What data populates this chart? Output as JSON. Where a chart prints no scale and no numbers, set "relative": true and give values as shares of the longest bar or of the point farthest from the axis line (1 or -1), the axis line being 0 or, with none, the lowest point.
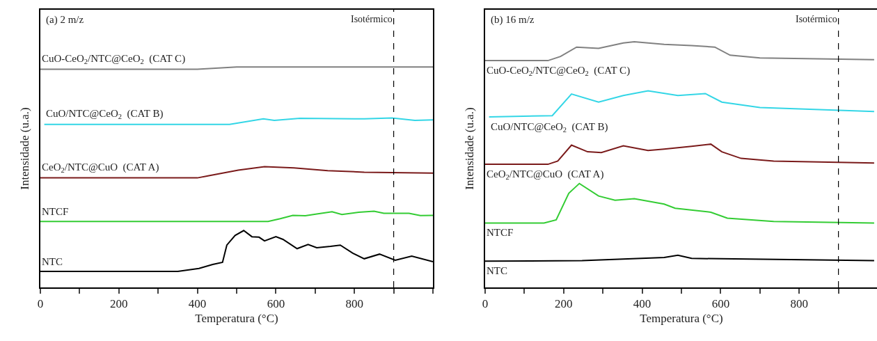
{
  "chart_data": [
    {
      "type": "line",
      "relative": true,
      "xlabel": "Temperatura (°C)",
      "ylabel": "Intensidade (u.a.)",
      "annotations": [
        "(a) 2 m/z"
      ],
      "xlim": [
        0,
        1000
      ],
      "xticks": [
        0,
        {
          "value": 100,
          "label": null
        },
        200,
        {
          "value": 300,
          "label": null
        },
        400,
        {
          "value": 500,
          "label": null
        },
        600,
        {
          "value": 700,
          "label": null
        },
        800,
        {
          "value": 900,
          "label": null
        },
        {
          "value": 1000,
          "label": null
        }
      ],
      "tick_labels": "x",
      "grid": false,
      "legend": false,
      "marker": "none",
      "line_style": "solid",
      "ref_lines": [
        {
          "axis": "x",
          "value": 900,
          "label": "Isotérmico",
          "color": "#000000",
          "line_style": "dashed"
        }
      ],
      "series": [
        {
          "name": "CuO-CeO$_{2}$/NTC@CeO$_{2}$  (CAT C)",
          "color": "#808080",
          "x": [
            0,
            400,
            500,
            1000
          ],
          "values": [
            0.99,
            0.99,
            1.0,
            1.0
          ]
        },
        {
          "name": "CuO/NTC@CeO$_{2}$  (CAT B)",
          "color": "#33d6e6",
          "x": [
            10,
            482,
            568,
            596,
            661,
            825,
            896,
            954,
            1000
          ],
          "values": [
            0.74,
            0.74,
            0.765,
            0.758,
            0.767,
            0.765,
            0.769,
            0.758,
            0.76
          ]
        },
        {
          "name": "CeO$_{2}$/NTC@CuO  (CAT A)",
          "color": "#7a1a1a",
          "x": [
            0,
            400,
            429,
            504,
            571,
            646,
            732,
            825,
            1000
          ],
          "values": [
            0.497,
            0.497,
            0.507,
            0.532,
            0.548,
            0.542,
            0.53,
            0.523,
            0.519
          ]
        },
        {
          "name": "NTCF",
          "color": "#33cc33",
          "x": [
            0,
            580,
            611,
            643,
            675,
            704,
            743,
            768,
            811,
            850,
            875,
            939,
            968,
            1000
          ],
          "values": [
            0.299,
            0.299,
            0.312,
            0.327,
            0.325,
            0.333,
            0.343,
            0.331,
            0.341,
            0.346,
            0.336,
            0.336,
            0.326,
            0.327
          ]
        },
        {
          "name": "NTC",
          "color": "#000000",
          "x": [
            0,
            350,
            404,
            439,
            464,
            475,
            496,
            518,
            539,
            557,
            571,
            600,
            618,
            654,
            682,
            704,
            739,
            764,
            796,
            825,
            864,
            904,
            946,
            1000
          ],
          "values": [
            0.073,
            0.073,
            0.086,
            0.104,
            0.114,
            0.192,
            0.236,
            0.258,
            0.23,
            0.228,
            0.211,
            0.23,
            0.218,
            0.176,
            0.195,
            0.18,
            0.186,
            0.192,
            0.155,
            0.13,
            0.151,
            0.123,
            0.142,
            0.117
          ]
        }
      ]
    },
    {
      "type": "line",
      "relative": true,
      "xlabel": "Temperatura (°C)",
      "ylabel": "Intensidade (u.a.)",
      "annotations": [
        "(b) 16 m/z"
      ],
      "xlim": [
        0,
        1000
      ],
      "xticks": [
        0,
        {
          "value": 100,
          "label": null
        },
        200,
        {
          "value": 300,
          "label": null
        },
        400,
        {
          "value": 500,
          "label": null
        },
        600,
        {
          "value": 700,
          "label": null
        },
        800,
        {
          "value": 900,
          "label": null
        },
        {
          "value": 1000,
          "label": null
        }
      ],
      "tick_labels": "x",
      "grid": false,
      "legend": false,
      "marker": "none",
      "line_style": "solid",
      "ref_lines": [
        {
          "axis": "x",
          "value": 900,
          "label": "Isotérmico",
          "color": "#000000",
          "line_style": "dashed"
        }
      ],
      "series": [
        {
          "name": "CuO-CeO$_{2}$/NTC@CeO$_{2}$  (CAT C)",
          "color": "#808080",
          "x": [
            0,
            160,
            192,
            233,
            289,
            352,
            380,
            456,
            526,
            585,
            624,
            700,
            991
          ],
          "values": [
            0.923,
            0.923,
            0.94,
            0.978,
            0.973,
            0.995,
            1.0,
            0.989,
            0.984,
            0.978,
            0.945,
            0.934,
            0.927
          ]
        },
        {
          "name": "CuO/NTC@CeO$_{2}$  (CAT B)",
          "color": "#33d6e6",
          "x": [
            10,
            171,
            220,
            289,
            352,
            415,
            491,
            561,
            603,
            700,
            991
          ],
          "values": [
            0.694,
            0.699,
            0.787,
            0.754,
            0.781,
            0.8,
            0.781,
            0.789,
            0.754,
            0.732,
            0.716
          ]
        },
        {
          "name": "CeO$_{2}$/NTC@CuO  (CAT A)",
          "color": "#7a1a1a",
          "x": [
            0,
            160,
            185,
            220,
            261,
            296,
            352,
            415,
            456,
            526,
            575,
            603,
            652,
            735,
            991
          ],
          "values": [
            0.501,
            0.501,
            0.514,
            0.579,
            0.552,
            0.549,
            0.576,
            0.557,
            0.563,
            0.574,
            0.583,
            0.552,
            0.525,
            0.514,
            0.506
          ]
        },
        {
          "name": "NTCF",
          "color": "#33cc33",
          "x": [
            0,
            150,
            181,
            213,
            240,
            289,
            331,
            380,
            456,
            484,
            575,
            617,
            735,
            991
          ],
          "values": [
            0.262,
            0.262,
            0.275,
            0.383,
            0.423,
            0.372,
            0.355,
            0.361,
            0.339,
            0.322,
            0.306,
            0.282,
            0.268,
            0.262
          ]
        },
        {
          "name": "NTC",
          "color": "#000000",
          "x": [
            0,
            247,
            456,
            491,
            526,
            991
          ],
          "values": [
            0.107,
            0.109,
            0.122,
            0.131,
            0.118,
            0.109
          ]
        }
      ]
    }
  ]
}
